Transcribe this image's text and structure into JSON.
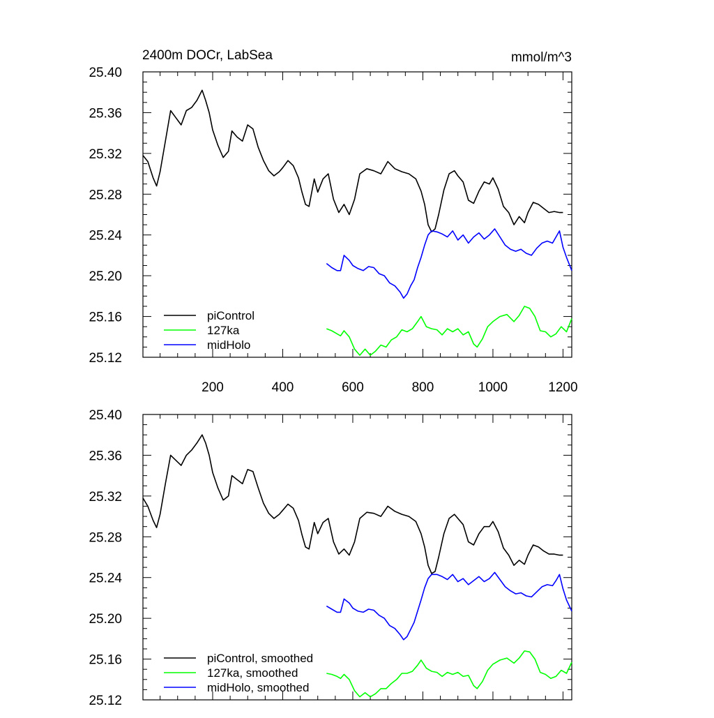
{
  "chart_data": [
    {
      "type": "line",
      "title_left": "2400m DOCr, LabSea",
      "title_right": "mmol/m^3",
      "xlim": [
        1,
        1225
      ],
      "ylim": [
        25.12,
        25.4
      ],
      "yticks": [
        "25.40",
        "25.36",
        "25.32",
        "25.28",
        "25.24",
        "25.20",
        "25.16",
        "25.12"
      ],
      "xticks": [
        "200",
        "400",
        "600",
        "800",
        "1000",
        "1200"
      ],
      "legend_position": "bottom-left",
      "grid": false,
      "series": [
        {
          "name": "piControl",
          "color": "#000000",
          "x": [
            1,
            15,
            30,
            40,
            50,
            65,
            80,
            95,
            110,
            125,
            140,
            155,
            170,
            180,
            190,
            200,
            215,
            230,
            245,
            255,
            270,
            285,
            300,
            315,
            330,
            345,
            360,
            375,
            390,
            400,
            415,
            430,
            445,
            455,
            465,
            475,
            490,
            500,
            515,
            530,
            545,
            560,
            575,
            590,
            605,
            620,
            640,
            660,
            680,
            700,
            720,
            740,
            760,
            780,
            795,
            805,
            815,
            825,
            835,
            845,
            860,
            875,
            890,
            900,
            915,
            930,
            945,
            960,
            975,
            990,
            1000,
            1015,
            1030,
            1045,
            1060,
            1075,
            1090,
            1100,
            1115,
            1130,
            1145,
            1160,
            1175,
            1190,
            1200
          ],
          "y": [
            25.318,
            25.312,
            25.296,
            25.288,
            25.302,
            25.332,
            25.362,
            25.355,
            25.348,
            25.362,
            25.365,
            25.372,
            25.382,
            25.372,
            25.36,
            25.343,
            25.328,
            25.316,
            25.322,
            25.342,
            25.336,
            25.332,
            25.348,
            25.344,
            25.326,
            25.313,
            25.303,
            25.298,
            25.302,
            25.306,
            25.313,
            25.308,
            25.296,
            25.282,
            25.27,
            25.268,
            25.295,
            25.282,
            25.295,
            25.3,
            25.275,
            25.262,
            25.27,
            25.26,
            25.275,
            25.3,
            25.305,
            25.303,
            25.3,
            25.312,
            25.305,
            25.302,
            25.3,
            25.295,
            25.283,
            25.27,
            25.25,
            25.243,
            25.246,
            25.26,
            25.284,
            25.3,
            25.303,
            25.298,
            25.292,
            25.274,
            25.271,
            25.283,
            25.292,
            25.29,
            25.296,
            25.285,
            25.268,
            25.262,
            25.25,
            25.258,
            25.252,
            25.262,
            25.272,
            25.27,
            25.266,
            25.262,
            25.263,
            25.262,
            25.262
          ]
        },
        {
          "name": "127ka",
          "color": "#00ff00",
          "x": [
            525,
            540,
            555,
            565,
            575,
            590,
            605,
            620,
            635,
            650,
            665,
            680,
            695,
            710,
            725,
            740,
            755,
            770,
            785,
            795,
            810,
            825,
            840,
            855,
            870,
            885,
            900,
            915,
            930,
            945,
            955,
            970,
            985,
            1000,
            1020,
            1040,
            1060,
            1075,
            1090,
            1105,
            1120,
            1135,
            1150,
            1165,
            1180,
            1195,
            1210,
            1225
          ],
          "y": [
            25.148,
            25.146,
            25.143,
            25.141,
            25.146,
            25.14,
            25.128,
            25.122,
            25.128,
            25.122,
            25.126,
            25.132,
            25.13,
            25.137,
            25.14,
            25.147,
            25.145,
            25.148,
            25.155,
            25.16,
            25.15,
            25.148,
            25.147,
            25.142,
            25.148,
            25.145,
            25.148,
            25.142,
            25.145,
            25.133,
            25.13,
            25.138,
            25.15,
            25.155,
            25.16,
            25.162,
            25.155,
            25.161,
            25.17,
            25.168,
            25.16,
            25.146,
            25.145,
            25.14,
            25.143,
            25.15,
            25.145,
            25.158
          ]
        },
        {
          "name": "midHolo",
          "color": "#0000ff",
          "x": [
            525,
            540,
            555,
            565,
            575,
            590,
            600,
            615,
            630,
            645,
            660,
            675,
            690,
            705,
            720,
            735,
            745,
            755,
            765,
            775,
            785,
            795,
            805,
            815,
            825,
            840,
            855,
            870,
            885,
            900,
            915,
            930,
            945,
            960,
            975,
            990,
            1005,
            1020,
            1035,
            1050,
            1065,
            1080,
            1095,
            1110,
            1125,
            1140,
            1155,
            1170,
            1180,
            1190,
            1200,
            1210,
            1225
          ],
          "y": [
            25.212,
            25.208,
            25.205,
            25.205,
            25.22,
            25.215,
            25.21,
            25.207,
            25.205,
            25.209,
            25.208,
            25.202,
            25.2,
            25.193,
            25.19,
            25.184,
            25.178,
            25.182,
            25.19,
            25.196,
            25.208,
            25.218,
            25.23,
            25.24,
            25.244,
            25.243,
            25.241,
            25.238,
            25.244,
            25.235,
            25.24,
            25.232,
            25.238,
            25.242,
            25.236,
            25.24,
            25.246,
            25.238,
            25.23,
            25.226,
            25.224,
            25.226,
            25.222,
            25.22,
            25.227,
            25.232,
            25.234,
            25.232,
            25.238,
            25.244,
            25.228,
            25.218,
            25.205
          ]
        }
      ]
    },
    {
      "type": "line",
      "xlim": [
        1,
        1225
      ],
      "ylim": [
        25.12,
        25.4
      ],
      "yticks": [
        "25.40",
        "25.36",
        "25.32",
        "25.28",
        "25.24",
        "25.20",
        "25.16",
        "25.12"
      ],
      "legend_position": "bottom-left",
      "grid": false,
      "series": [
        {
          "name": "piControl, smoothed",
          "color": "#000000",
          "x": [
            1,
            15,
            30,
            40,
            50,
            65,
            80,
            95,
            110,
            125,
            140,
            155,
            170,
            180,
            190,
            200,
            215,
            230,
            245,
            255,
            270,
            285,
            300,
            315,
            330,
            345,
            360,
            375,
            390,
            400,
            415,
            430,
            445,
            455,
            465,
            475,
            490,
            500,
            515,
            530,
            545,
            560,
            575,
            590,
            605,
            620,
            640,
            660,
            680,
            700,
            720,
            740,
            760,
            780,
            795,
            805,
            815,
            825,
            835,
            845,
            860,
            875,
            890,
            900,
            915,
            930,
            945,
            960,
            975,
            990,
            1000,
            1015,
            1030,
            1045,
            1060,
            1075,
            1090,
            1100,
            1115,
            1130,
            1145,
            1160,
            1175,
            1190,
            1200
          ],
          "y": [
            25.318,
            25.31,
            25.296,
            25.289,
            25.302,
            25.332,
            25.36,
            25.355,
            25.35,
            25.36,
            25.365,
            25.372,
            25.38,
            25.372,
            25.36,
            25.343,
            25.328,
            25.316,
            25.32,
            25.34,
            25.336,
            25.332,
            25.346,
            25.344,
            25.328,
            25.313,
            25.303,
            25.298,
            25.302,
            25.306,
            25.312,
            25.308,
            25.296,
            25.282,
            25.27,
            25.268,
            25.294,
            25.283,
            25.294,
            25.298,
            25.275,
            25.263,
            25.268,
            25.262,
            25.275,
            25.298,
            25.304,
            25.303,
            25.3,
            25.31,
            25.305,
            25.302,
            25.3,
            25.295,
            25.283,
            25.27,
            25.252,
            25.244,
            25.246,
            25.26,
            25.283,
            25.298,
            25.302,
            25.298,
            25.292,
            25.275,
            25.272,
            25.283,
            25.29,
            25.29,
            25.295,
            25.285,
            25.269,
            25.262,
            25.252,
            25.257,
            25.253,
            25.262,
            25.272,
            25.27,
            25.266,
            25.263,
            25.263,
            25.262,
            25.262
          ]
        },
        {
          "name": "127ka, smoothed",
          "color": "#00ff00",
          "x": [
            525,
            540,
            555,
            565,
            575,
            590,
            605,
            620,
            635,
            650,
            665,
            680,
            695,
            710,
            725,
            740,
            755,
            770,
            785,
            795,
            810,
            825,
            840,
            855,
            870,
            885,
            900,
            915,
            930,
            945,
            955,
            970,
            985,
            1000,
            1020,
            1040,
            1060,
            1075,
            1090,
            1105,
            1120,
            1135,
            1150,
            1165,
            1180,
            1195,
            1210,
            1225
          ],
          "y": [
            25.146,
            25.145,
            25.143,
            25.141,
            25.145,
            25.14,
            25.129,
            25.123,
            25.127,
            25.123,
            25.126,
            25.131,
            25.131,
            25.136,
            25.14,
            25.146,
            25.146,
            25.148,
            25.154,
            25.159,
            25.151,
            25.148,
            25.147,
            25.143,
            25.147,
            25.145,
            25.147,
            25.143,
            25.144,
            25.134,
            25.131,
            25.138,
            25.149,
            25.155,
            25.159,
            25.161,
            25.156,
            25.161,
            25.168,
            25.167,
            25.16,
            25.147,
            25.145,
            25.141,
            25.143,
            25.149,
            25.146,
            25.157
          ]
        },
        {
          "name": "midHolo, smoothed",
          "color": "#0000ff",
          "x": [
            525,
            540,
            555,
            565,
            575,
            590,
            600,
            615,
            630,
            645,
            660,
            675,
            690,
            705,
            720,
            735,
            745,
            755,
            765,
            775,
            785,
            795,
            805,
            815,
            825,
            840,
            855,
            870,
            885,
            900,
            915,
            930,
            945,
            960,
            975,
            990,
            1005,
            1020,
            1035,
            1050,
            1065,
            1080,
            1095,
            1110,
            1125,
            1140,
            1155,
            1170,
            1180,
            1190,
            1200,
            1210,
            1225
          ],
          "y": [
            25.212,
            25.209,
            25.206,
            25.206,
            25.219,
            25.215,
            25.21,
            25.207,
            25.206,
            25.209,
            25.208,
            25.203,
            25.2,
            25.193,
            25.19,
            25.184,
            25.179,
            25.182,
            25.189,
            25.196,
            25.207,
            25.218,
            25.23,
            25.239,
            25.243,
            25.243,
            25.241,
            25.238,
            25.243,
            25.236,
            25.239,
            25.233,
            25.237,
            25.241,
            25.236,
            25.239,
            25.245,
            25.238,
            25.231,
            25.227,
            25.224,
            25.225,
            25.222,
            25.221,
            25.226,
            25.231,
            25.233,
            25.232,
            25.237,
            25.243,
            25.229,
            25.218,
            25.207
          ]
        }
      ]
    }
  ]
}
